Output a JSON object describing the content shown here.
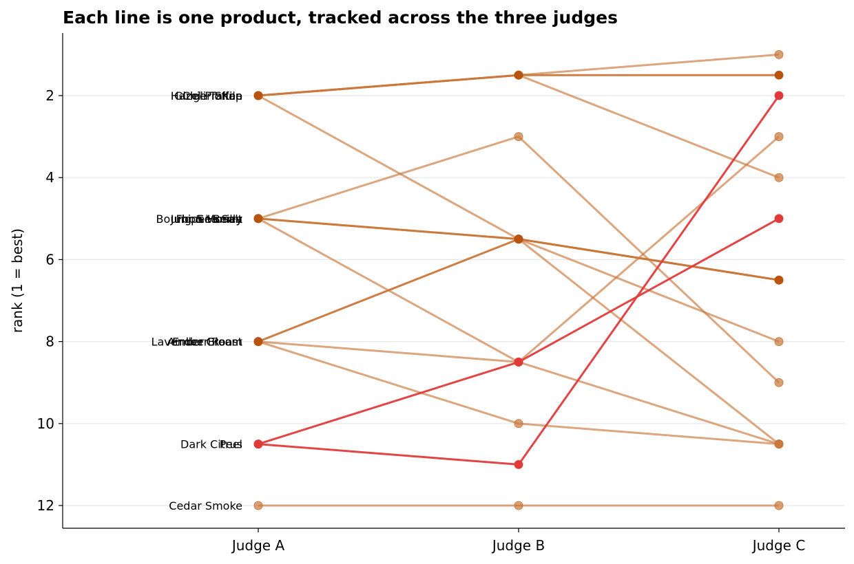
{
  "chart_data": {
    "type": "line",
    "title": "Each line is one product, tracked across the three judges",
    "xlabel": "",
    "ylabel": "rank (1 = best)",
    "categories": [
      "Judge A",
      "Judge B",
      "Judge C"
    ],
    "y_ticks": [
      2,
      4,
      6,
      8,
      10,
      12
    ],
    "ylim": [
      12.55,
      0.5
    ],
    "y_inverted": true,
    "grid": "horizontal",
    "colors": {
      "default": "#c9773a",
      "dark": "#b8540f",
      "highlight": "#e03b3b",
      "grid": "#e8e8e8"
    },
    "series": [
      {
        "name": "Hazel Praline",
        "values": [
          2,
          1.5,
          1
        ],
        "style": "default"
      },
      {
        "name": "Chili Toffee",
        "values": [
          2,
          1.5,
          1.5
        ],
        "style": "dark"
      },
      {
        "name": "Ginger Snap",
        "values": [
          2,
          1.5,
          4
        ],
        "style": "default"
      },
      {
        "name": "Kiln",
        "values": [
          2,
          5.5,
          10.5
        ],
        "style": "default"
      },
      {
        "name": "Bourbon Vanilla",
        "values": [
          5,
          3,
          9
        ],
        "style": "default"
      },
      {
        "name": "Juniper Berry",
        "values": [
          5,
          5.5,
          6.5
        ],
        "style": "dark"
      },
      {
        "name": "Fig & Honey",
        "values": [
          5,
          5.5,
          8
        ],
        "style": "default"
      },
      {
        "name": "Sea Salt",
        "values": [
          5,
          8.5,
          10.5
        ],
        "style": "default"
      },
      {
        "name": "Lavender Cream",
        "values": [
          8,
          5.5,
          6.5
        ],
        "style": "dark"
      },
      {
        "name": "Ember Roast",
        "values": [
          8,
          8.5,
          3
        ],
        "style": "default"
      },
      {
        "name": "Amber Bloom",
        "values": [
          8,
          10,
          10.5
        ],
        "style": "default"
      },
      {
        "name": "Dark Citrus",
        "values": [
          10.5,
          8.5,
          5
        ],
        "style": "highlight"
      },
      {
        "name": "Peel",
        "values": [
          10.5,
          11,
          2
        ],
        "style": "highlight"
      },
      {
        "name": "Cedar Smoke",
        "values": [
          12,
          12,
          12
        ],
        "style": "default"
      }
    ]
  }
}
